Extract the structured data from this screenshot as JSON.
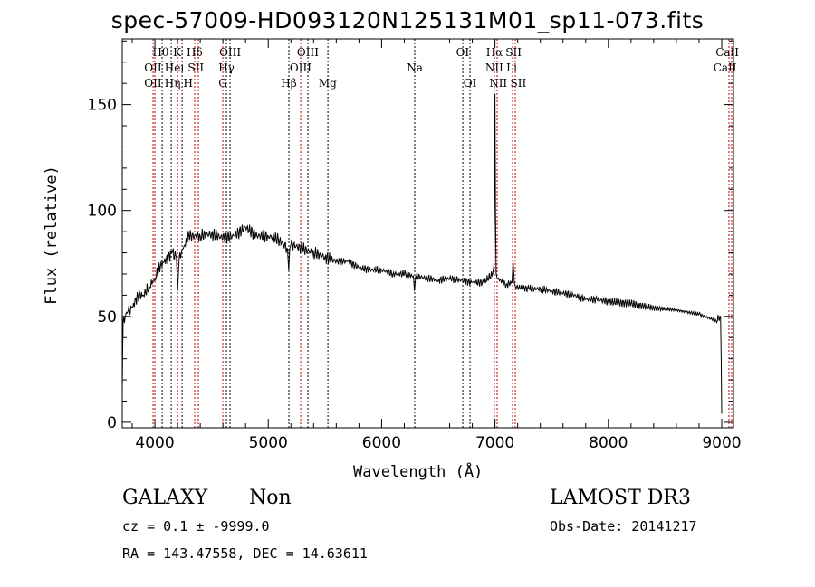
{
  "chart_data": {
    "type": "line",
    "title": "spec-57009-HD093120N125131M01_sp11-073.fits",
    "xlabel": "Wavelength (Å)",
    "ylabel": "Flux (relative)",
    "xlim": [
      3712,
      9104
    ],
    "ylim": [
      -2.6,
      181
    ],
    "xticks": [
      4000,
      5000,
      6000,
      7000,
      8000,
      9000
    ],
    "yticks": [
      0,
      50,
      100,
      150
    ],
    "grid": false,
    "series": [
      {
        "name": "spectrum",
        "x": [
          3712,
          3716,
          3720,
          3760,
          3800,
          3850,
          3900,
          3950,
          4000,
          4050,
          4100,
          4150,
          4190,
          4200,
          4215,
          4250,
          4300,
          4400,
          4500,
          4600,
          4700,
          4800,
          4900,
          5000,
          5100,
          5170,
          5180,
          5190,
          5200,
          5300,
          5400,
          5500,
          5600,
          5700,
          5800,
          5900,
          6000,
          6100,
          6200,
          6280,
          6290,
          6300,
          6400,
          6500,
          6600,
          6700,
          6800,
          6900,
          6980,
          6990,
          6995,
          7000,
          7005,
          7010,
          7020,
          7100,
          7150,
          7160,
          7170,
          7180,
          7300,
          7400,
          7500,
          7600,
          7700,
          7800,
          7900,
          8000,
          8200,
          8400,
          8600,
          8800,
          8950,
          8990,
          8995,
          9000
        ],
        "y": [
          15,
          35,
          48,
          52,
          54,
          60,
          60,
          64,
          68,
          74,
          77,
          80,
          78,
          62,
          78,
          82,
          88,
          88,
          89,
          87,
          88,
          92,
          88,
          88,
          86,
          82,
          72,
          82,
          84,
          82,
          80,
          78,
          76,
          76,
          73,
          72,
          72,
          70,
          70,
          69,
          62,
          69,
          68,
          67,
          68,
          67,
          66,
          66,
          70,
          74,
          100,
          155,
          100,
          70,
          68,
          65,
          66,
          76,
          66,
          64,
          63,
          63,
          62,
          61,
          60,
          58,
          58,
          57,
          56,
          54,
          53,
          51,
          48,
          50,
          30,
          4
        ]
      }
    ],
    "lines": [
      {
        "w": 3984,
        "c": "red"
      },
      {
        "w": 4000,
        "c": "red"
      },
      {
        "w": 4064,
        "c": "black"
      },
      {
        "w": 4144,
        "c": "black"
      },
      {
        "w": 4200,
        "c": "red"
      },
      {
        "w": 4240,
        "c": "black"
      },
      {
        "w": 4351,
        "c": "red"
      },
      {
        "w": 4383,
        "c": "red"
      },
      {
        "w": 4599,
        "c": "red"
      },
      {
        "w": 4631,
        "c": "black"
      },
      {
        "w": 4663,
        "c": "black"
      },
      {
        "w": 5182,
        "c": "black"
      },
      {
        "w": 5286,
        "c": "red"
      },
      {
        "w": 5350,
        "c": "black"
      },
      {
        "w": 5526,
        "c": "black"
      },
      {
        "w": 6292,
        "c": "black"
      },
      {
        "w": 6716,
        "c": "black"
      },
      {
        "w": 6780,
        "c": "black"
      },
      {
        "w": 6995,
        "c": "red"
      },
      {
        "w": 7019,
        "c": "red"
      },
      {
        "w": 7155,
        "c": "red"
      },
      {
        "w": 7179,
        "c": "red"
      },
      {
        "w": 9064,
        "c": "red"
      },
      {
        "w": 9088,
        "c": "red"
      }
    ],
    "annotations": [
      {
        "text": "Hθ",
        "w": 4050,
        "row": 0
      },
      {
        "text": "K",
        "w": 4200,
        "row": 0
      },
      {
        "text": "Hδ",
        "w": 4350,
        "row": 0
      },
      {
        "text": "OIII",
        "w": 4665,
        "row": 0
      },
      {
        "text": "OIII",
        "w": 5350,
        "row": 0
      },
      {
        "text": "OI",
        "w": 6716,
        "row": 0
      },
      {
        "text": "Hα",
        "w": 6995,
        "row": 0
      },
      {
        "text": "SII",
        "w": 7155,
        "row": 0
      },
      {
        "text": "CaII",
        "w": 9050,
        "row": 0
      },
      {
        "text": "OII",
        "w": 3984,
        "row": 1
      },
      {
        "text": "Heι",
        "w": 4090,
        "row": 1
      },
      {
        "text": "SII",
        "w": 4335,
        "row": 1
      },
      {
        "text": "Hγ",
        "w": 4631,
        "row": 1
      },
      {
        "text": "OIII",
        "w": 5286,
        "row": 1
      },
      {
        "text": "Na",
        "w": 6292,
        "row": 1
      },
      {
        "text": "NII",
        "w": 6995,
        "row": 1
      },
      {
        "text": "Li",
        "w": 7140,
        "row": 1
      },
      {
        "text": "CaII",
        "w": 9030,
        "row": 1
      },
      {
        "text": "OII",
        "w": 3984,
        "row": 2
      },
      {
        "text": "Hη",
        "w": 4080,
        "row": 2
      },
      {
        "text": "H",
        "w": 4230,
        "row": 2
      },
      {
        "text": "G",
        "w": 4599,
        "row": 2
      },
      {
        "text": "Hβ",
        "w": 5182,
        "row": 2
      },
      {
        "text": "Mg",
        "w": 5526,
        "row": 2
      },
      {
        "text": "OI",
        "w": 6780,
        "row": 2
      },
      {
        "text": "NII",
        "w": 7030,
        "row": 2
      },
      {
        "text": "SII",
        "w": 7163,
        "row": 2
      }
    ]
  },
  "info": {
    "class": "GALAXY",
    "subclass": "Non",
    "cz": "cz = 0.1 ± -9999.0",
    "radec": "RA = 143.47558, DEC =  14.63611",
    "survey": "LAMOST DR3",
    "obsdate": "Obs-Date: 20141217"
  }
}
